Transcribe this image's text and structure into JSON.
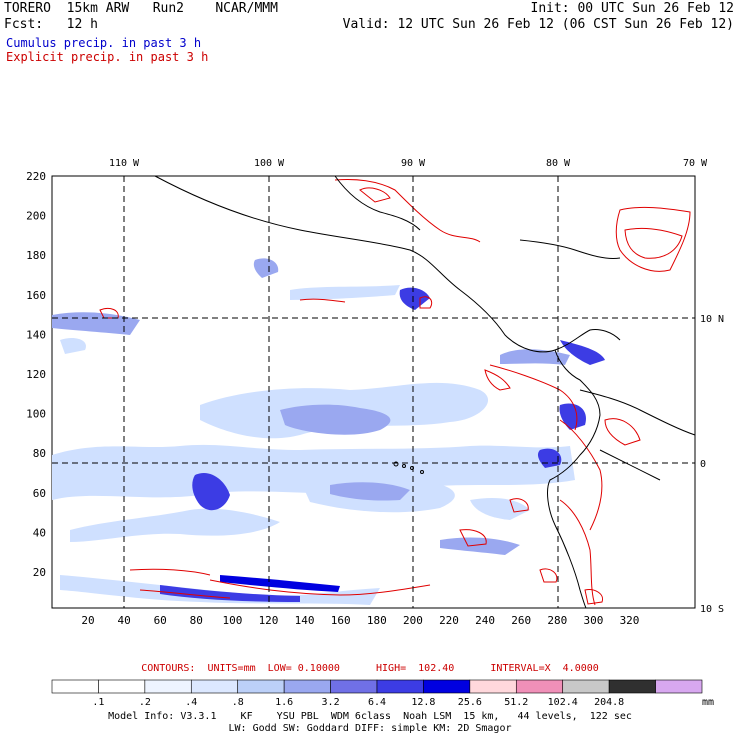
{
  "header": {
    "title_left": "TORERO  15km ARW   Run2    NCAR/MMM",
    "fcst_left": "Fcst:   12 h",
    "init_right": "Init: 00 UTC Sun 26 Feb 12",
    "valid_right": "Valid: 12 UTC Sun 26 Feb 12 (06 CST Sun 26 Feb 12)"
  },
  "legend": {
    "cumulus": "Cumulus precip. in past 3 h",
    "explicit": "Explicit precip. in past 3 h"
  },
  "map": {
    "lon_labels": [
      "110 W",
      "100 W",
      "90 W",
      "80 W",
      "70 W"
    ],
    "lat_labels": [
      "10 N",
      "0",
      "10 S"
    ],
    "y_ticks": [
      "20",
      "40",
      "60",
      "80",
      "100",
      "120",
      "140",
      "160",
      "180",
      "200",
      "220"
    ],
    "x_ticks": [
      "20",
      "40",
      "60",
      "80",
      "100",
      "120",
      "140",
      "160",
      "180",
      "200",
      "220",
      "240",
      "260",
      "280",
      "300",
      "320"
    ],
    "colors": {
      "cumulus_light": "#cfe0ff",
      "cumulus_mid": "#8f9cf0",
      "cumulus_dark": "#3a3ae0",
      "explicit_contour": "#e00000",
      "coast": "#000000",
      "grid": "#000000"
    }
  },
  "contours": {
    "text": "CONTOURS:  UNITS=mm  LOW= 0.10000      HIGH=  102.40      INTERVAL=X  4.0000"
  },
  "colorbar": {
    "labels": [
      ".1",
      ".2",
      ".4",
      ".8",
      "1.6",
      "3.2",
      "6.4",
      "12.8",
      "25.6",
      "51.2",
      "102.4",
      "204.8"
    ],
    "unit": "mm",
    "colors": [
      "#ffffff",
      "#ffffff",
      "#eef4ff",
      "#dce8ff",
      "#bcd0f8",
      "#9aa8f0",
      "#7070e6",
      "#3c3ce4",
      "#0000e0",
      "#ffd8dc",
      "#f090b8",
      "#c8c8c8",
      "#303030",
      "#d8a8f0"
    ]
  },
  "model_info": {
    "line1": "Model Info: V3.3.1    KF    YSU PBL  WDM 6class  Noah LSM  15 km,   44 levels,  122 sec",
    "line2": "LW: Godd SW: Goddard DIFF: simple KM: 2D Smagor"
  }
}
